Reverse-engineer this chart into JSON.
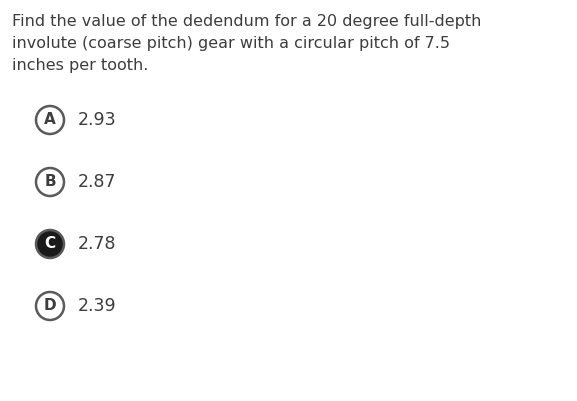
{
  "question_lines": [
    "Find the value of the dedendum for a 20 degree full-depth",
    "involute (coarse pitch) gear with a circular pitch of 7.5",
    "inches per tooth."
  ],
  "options": [
    {
      "label": "A",
      "text": "2.93",
      "correct": false
    },
    {
      "label": "B",
      "text": "2.87",
      "correct": false
    },
    {
      "label": "C",
      "text": "2.78",
      "correct": true
    },
    {
      "label": "D",
      "text": "2.39",
      "correct": false
    }
  ],
  "background_color": "#ffffff",
  "text_color": "#3d3d3d",
  "circle_outline_color": "#5a5a5a",
  "circle_fill_correct": "#1a1a1a",
  "circle_fill_incorrect": "#ffffff",
  "label_color_correct": "#ffffff",
  "label_color_incorrect": "#3d3d3d",
  "question_fontsize": 11.5,
  "option_fontsize": 12.5,
  "label_fontsize": 11.0,
  "fig_width": 5.77,
  "fig_height": 4.01,
  "dpi": 100
}
